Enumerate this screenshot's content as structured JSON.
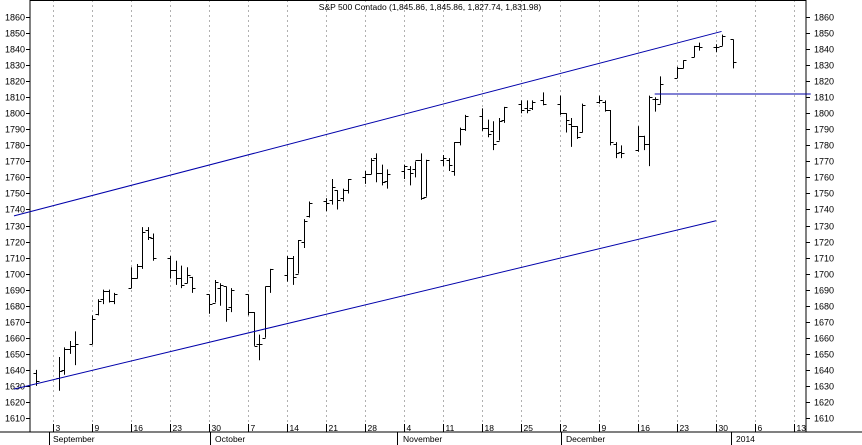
{
  "chart_data": {
    "type": "ohlc",
    "title": "S&P 500 Contado (1,845.86, 1,845.86, 1,827.74, 1,831.98)",
    "ylim": [
      1610,
      1860
    ],
    "y_ticks": [
      1610,
      1620,
      1630,
      1640,
      1650,
      1660,
      1670,
      1680,
      1690,
      1700,
      1710,
      1720,
      1730,
      1740,
      1750,
      1760,
      1770,
      1780,
      1790,
      1800,
      1810,
      1820,
      1830,
      1840,
      1850,
      1860
    ],
    "x_date_labels": [
      "3",
      "9",
      "16",
      "23",
      "30",
      "7",
      "14",
      "21",
      "28",
      "4",
      "11",
      "18",
      "25",
      "2",
      "9",
      "16",
      "23",
      "30",
      "6",
      "13"
    ],
    "x_month_labels": [
      "September",
      "October",
      "November",
      "December",
      "2014"
    ],
    "grid": "vertical dotted",
    "ohlc": [
      {
        "date": "2013-08-30",
        "open": 1638,
        "high": 1640,
        "low": 1630,
        "close": 1633
      },
      {
        "date": "2013-09-03",
        "open": 1635,
        "high": 1648,
        "low": 1627,
        "close": 1639
      },
      {
        "date": "2013-09-04",
        "open": 1640,
        "high": 1654,
        "low": 1637,
        "close": 1653
      },
      {
        "date": "2013-09-05",
        "open": 1653,
        "high": 1658,
        "low": 1650,
        "close": 1655
      },
      {
        "date": "2013-09-06",
        "open": 1655,
        "high": 1664,
        "low": 1643,
        "close": 1656
      },
      {
        "date": "2013-09-09",
        "open": 1656,
        "high": 1674,
        "low": 1656,
        "close": 1672
      },
      {
        "date": "2013-09-10",
        "open": 1675,
        "high": 1684,
        "low": 1674,
        "close": 1683
      },
      {
        "date": "2013-09-11",
        "open": 1684,
        "high": 1690,
        "low": 1681,
        "close": 1689
      },
      {
        "date": "2013-09-12",
        "open": 1689,
        "high": 1690,
        "low": 1682,
        "close": 1683
      },
      {
        "date": "2013-09-13",
        "open": 1683,
        "high": 1688,
        "low": 1681,
        "close": 1687
      },
      {
        "date": "2013-09-16",
        "open": 1691,
        "high": 1704,
        "low": 1691,
        "close": 1697
      },
      {
        "date": "2013-09-17",
        "open": 1697,
        "high": 1706,
        "low": 1697,
        "close": 1705
      },
      {
        "date": "2013-09-18",
        "open": 1705,
        "high": 1729,
        "low": 1703,
        "close": 1726
      },
      {
        "date": "2013-09-19",
        "open": 1727,
        "high": 1729,
        "low": 1721,
        "close": 1723
      },
      {
        "date": "2013-09-20",
        "open": 1722,
        "high": 1725,
        "low": 1708,
        "close": 1710
      },
      {
        "date": "2013-09-23",
        "open": 1710,
        "high": 1711,
        "low": 1697,
        "close": 1702
      },
      {
        "date": "2013-09-24",
        "open": 1702,
        "high": 1708,
        "low": 1693,
        "close": 1697
      },
      {
        "date": "2013-09-25",
        "open": 1697,
        "high": 1705,
        "low": 1691,
        "close": 1693
      },
      {
        "date": "2013-09-26",
        "open": 1694,
        "high": 1704,
        "low": 1694,
        "close": 1699
      },
      {
        "date": "2013-09-27",
        "open": 1698,
        "high": 1698,
        "low": 1688,
        "close": 1691
      },
      {
        "date": "2013-09-30",
        "open": 1687,
        "high": 1687,
        "low": 1675,
        "close": 1681
      },
      {
        "date": "2013-10-01",
        "open": 1682,
        "high": 1696,
        "low": 1682,
        "close": 1695
      },
      {
        "date": "2013-10-02",
        "open": 1691,
        "high": 1694,
        "low": 1680,
        "close": 1693
      },
      {
        "date": "2013-10-03",
        "open": 1692,
        "high": 1692,
        "low": 1670,
        "close": 1678
      },
      {
        "date": "2013-10-04",
        "open": 1679,
        "high": 1691,
        "low": 1676,
        "close": 1690
      },
      {
        "date": "2013-10-07",
        "open": 1687,
        "high": 1687,
        "low": 1674,
        "close": 1676
      },
      {
        "date": "2013-10-08",
        "open": 1676,
        "high": 1676,
        "low": 1655,
        "close": 1655
      },
      {
        "date": "2013-10-09",
        "open": 1656,
        "high": 1662,
        "low": 1646,
        "close": 1656
      },
      {
        "date": "2013-10-10",
        "open": 1660,
        "high": 1692,
        "low": 1660,
        "close": 1692
      },
      {
        "date": "2013-10-11",
        "open": 1692,
        "high": 1703,
        "low": 1688,
        "close": 1703
      },
      {
        "date": "2013-10-14",
        "open": 1699,
        "high": 1711,
        "low": 1695,
        "close": 1710
      },
      {
        "date": "2013-10-15",
        "open": 1710,
        "high": 1711,
        "low": 1693,
        "close": 1698
      },
      {
        "date": "2013-10-16",
        "open": 1700,
        "high": 1721,
        "low": 1700,
        "close": 1721
      },
      {
        "date": "2013-10-17",
        "open": 1720,
        "high": 1734,
        "low": 1716,
        "close": 1733
      },
      {
        "date": "2013-10-18",
        "open": 1736,
        "high": 1745,
        "low": 1735,
        "close": 1744
      },
      {
        "date": "2013-10-21",
        "open": 1745,
        "high": 1747,
        "low": 1739,
        "close": 1744
      },
      {
        "date": "2013-10-22",
        "open": 1746,
        "high": 1759,
        "low": 1743,
        "close": 1754
      },
      {
        "date": "2013-10-23",
        "open": 1752,
        "high": 1752,
        "low": 1740,
        "close": 1746
      },
      {
        "date": "2013-10-24",
        "open": 1747,
        "high": 1753,
        "low": 1745,
        "close": 1752
      },
      {
        "date": "2013-10-25",
        "open": 1752,
        "high": 1759,
        "low": 1750,
        "close": 1759
      },
      {
        "date": "2013-10-28",
        "open": 1760,
        "high": 1764,
        "low": 1756,
        "close": 1762
      },
      {
        "date": "2013-10-29",
        "open": 1762,
        "high": 1772,
        "low": 1762,
        "close": 1771
      },
      {
        "date": "2013-10-30",
        "open": 1772,
        "high": 1775,
        "low": 1757,
        "close": 1763
      },
      {
        "date": "2013-10-31",
        "open": 1763,
        "high": 1768,
        "low": 1755,
        "close": 1757
      },
      {
        "date": "2013-11-01",
        "open": 1758,
        "high": 1765,
        "low": 1753,
        "close": 1762
      },
      {
        "date": "2013-11-04",
        "open": 1764,
        "high": 1768,
        "low": 1759,
        "close": 1767
      },
      {
        "date": "2013-11-05",
        "open": 1765,
        "high": 1767,
        "low": 1755,
        "close": 1763
      },
      {
        "date": "2013-11-06",
        "open": 1765,
        "high": 1770,
        "low": 1760,
        "close": 1771
      },
      {
        "date": "2013-11-07",
        "open": 1771,
        "high": 1775,
        "low": 1746,
        "close": 1747
      },
      {
        "date": "2013-11-08",
        "open": 1748,
        "high": 1771,
        "low": 1748,
        "close": 1771
      },
      {
        "date": "2013-11-11",
        "open": 1771,
        "high": 1774,
        "low": 1767,
        "close": 1772
      },
      {
        "date": "2013-11-12",
        "open": 1771,
        "high": 1772,
        "low": 1764,
        "close": 1768
      },
      {
        "date": "2013-11-13",
        "open": 1764,
        "high": 1782,
        "low": 1761,
        "close": 1782
      },
      {
        "date": "2013-11-14",
        "open": 1782,
        "high": 1791,
        "low": 1780,
        "close": 1790
      },
      {
        "date": "2013-11-15",
        "open": 1790,
        "high": 1799,
        "low": 1789,
        "close": 1798
      },
      {
        "date": "2013-11-18",
        "open": 1798,
        "high": 1803,
        "low": 1789,
        "close": 1791
      },
      {
        "date": "2013-11-19",
        "open": 1791,
        "high": 1796,
        "low": 1785,
        "close": 1787
      },
      {
        "date": "2013-11-20",
        "open": 1789,
        "high": 1795,
        "low": 1777,
        "close": 1781
      },
      {
        "date": "2013-11-21",
        "open": 1783,
        "high": 1797,
        "low": 1783,
        "close": 1795
      },
      {
        "date": "2013-11-22",
        "open": 1796,
        "high": 1804,
        "low": 1794,
        "close": 1804
      },
      {
        "date": "2013-11-25",
        "open": 1806,
        "high": 1808,
        "low": 1800,
        "close": 1802
      },
      {
        "date": "2013-11-26",
        "open": 1803,
        "high": 1808,
        "low": 1800,
        "close": 1802
      },
      {
        "date": "2013-11-27",
        "open": 1803,
        "high": 1808,
        "low": 1802,
        "close": 1807
      },
      {
        "date": "2013-11-29",
        "open": 1808,
        "high": 1813,
        "low": 1805,
        "close": 1806
      },
      {
        "date": "2013-12-02",
        "open": 1806,
        "high": 1811,
        "low": 1799,
        "close": 1800
      },
      {
        "date": "2013-12-03",
        "open": 1800,
        "high": 1800,
        "low": 1788,
        "close": 1796
      },
      {
        "date": "2013-12-04",
        "open": 1793,
        "high": 1797,
        "low": 1779,
        "close": 1792
      },
      {
        "date": "2013-12-05",
        "open": 1792,
        "high": 1792,
        "low": 1784,
        "close": 1785
      },
      {
        "date": "2013-12-06",
        "open": 1788,
        "high": 1806,
        "low": 1788,
        "close": 1805
      },
      {
        "date": "2013-12-09",
        "open": 1807,
        "high": 1811,
        "low": 1806,
        "close": 1808
      },
      {
        "date": "2013-12-10",
        "open": 1807,
        "high": 1808,
        "low": 1801,
        "close": 1802
      },
      {
        "date": "2013-12-11",
        "open": 1802,
        "high": 1802,
        "low": 1780,
        "close": 1782
      },
      {
        "date": "2013-12-12",
        "open": 1781,
        "high": 1782,
        "low": 1772,
        "close": 1775
      },
      {
        "date": "2013-12-13",
        "open": 1776,
        "high": 1780,
        "low": 1772,
        "close": 1775
      },
      {
        "date": "2013-12-16",
        "open": 1777,
        "high": 1792,
        "low": 1776,
        "close": 1786
      },
      {
        "date": "2013-12-17",
        "open": 1786,
        "high": 1786,
        "low": 1777,
        "close": 1781
      },
      {
        "date": "2013-12-18",
        "open": 1781,
        "high": 1811,
        "low": 1767,
        "close": 1810
      },
      {
        "date": "2013-12-19",
        "open": 1809,
        "high": 1810,
        "low": 1801,
        "close": 1809
      },
      {
        "date": "2013-12-20",
        "open": 1806,
        "high": 1823,
        "low": 1806,
        "close": 1818
      },
      {
        "date": "2013-12-23",
        "open": 1822,
        "high": 1829,
        "low": 1822,
        "close": 1828
      },
      {
        "date": "2013-12-24",
        "open": 1828,
        "high": 1833,
        "low": 1828,
        "close": 1833
      },
      {
        "date": "2013-12-26",
        "open": 1835,
        "high": 1842,
        "low": 1835,
        "close": 1842
      },
      {
        "date": "2013-12-27",
        "open": 1842,
        "high": 1844,
        "low": 1839,
        "close": 1841
      },
      {
        "date": "2013-12-30",
        "open": 1841,
        "high": 1843,
        "low": 1838,
        "close": 1841
      },
      {
        "date": "2013-12-31",
        "open": 1842,
        "high": 1849,
        "low": 1842,
        "close": 1848
      },
      {
        "date": "2014-01-02",
        "open": 1846,
        "high": 1846,
        "low": 1828,
        "close": 1832
      }
    ],
    "trendlines": [
      {
        "x1": "2013-08-26",
        "y1": 1736,
        "x2": "2013-12-31",
        "y2": 1851
      },
      {
        "x1": "2013-08-26",
        "y1": 1628,
        "x2": "2013-12-30",
        "y2": 1733
      },
      {
        "x1": "2013-12-19",
        "y1": 1812,
        "x2": "2014-01-16",
        "y2": 1812
      }
    ],
    "colors": {
      "bars": "#000000",
      "trendlines": "#0000aa",
      "grid": "#b0b0b0"
    }
  }
}
